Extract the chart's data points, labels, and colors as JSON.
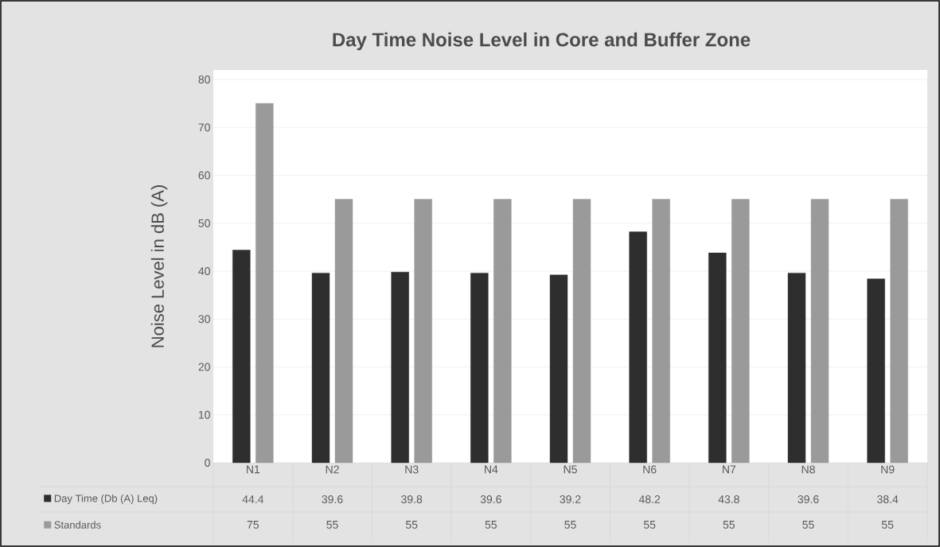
{
  "chart_data": {
    "type": "bar",
    "title": "Day Time Noise Level in Core and Buffer Zone",
    "ylabel": "Noise Level in dB (A)",
    "categories": [
      "N1",
      "N2",
      "N3",
      "N4",
      "N5",
      "N6",
      "N7",
      "N8",
      "N9"
    ],
    "series": [
      {
        "name": "Day Time (Db (A) Leq)",
        "color": "#2e2e2e",
        "values": [
          44.4,
          39.6,
          39.8,
          39.6,
          39.2,
          48.2,
          43.8,
          39.6,
          38.4
        ]
      },
      {
        "name": "Standards",
        "color": "#9a9a9a",
        "values": [
          75,
          55,
          55,
          55,
          55,
          55,
          55,
          55,
          55
        ]
      }
    ],
    "ylim": [
      0,
      80
    ],
    "yticks": [
      0,
      10,
      20,
      30,
      40,
      50,
      60,
      70,
      80
    ],
    "grid": "y",
    "legend": "bottom",
    "data_labels": true
  }
}
